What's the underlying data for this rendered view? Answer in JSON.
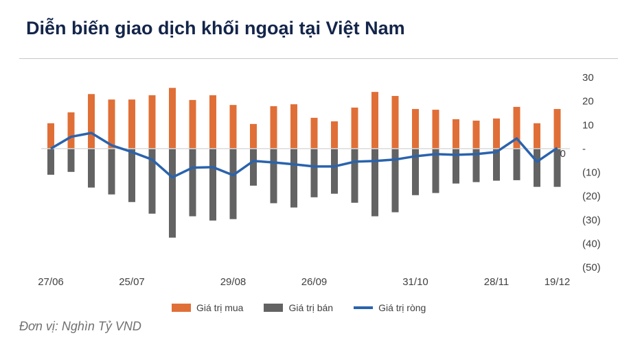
{
  "header": {
    "title": "Diễn biến giao dịch khối ngoại tại Việt Nam"
  },
  "footer": {
    "unit": "Đơn vị: Nghìn Tỷ VND"
  },
  "chart_data": {
    "type": "bar",
    "title": "Diễn biến giao dịch khối ngoại tại Việt Nam",
    "categories": [
      "27/06",
      "",
      "",
      "",
      "25/07",
      "",
      "",
      "",
      "",
      "29/08",
      "",
      "",
      "",
      "26/09",
      "",
      "",
      "",
      "",
      "31/10",
      "",
      "",
      "",
      "28/11",
      "",
      "",
      "19/12"
    ],
    "series": [
      {
        "name": "Giá trị mua",
        "type": "bar",
        "color": "#e06f37",
        "values": [
          10.7,
          15.3,
          23,
          20.7,
          20.7,
          22.5,
          25.6,
          20.5,
          22.5,
          18.4,
          10.4,
          17.9,
          18.7,
          13,
          11.5,
          17.3,
          23.9,
          22.2,
          16.7,
          16.4,
          12.4,
          11.8,
          12.7,
          17.6,
          10.7,
          16.7
        ]
      },
      {
        "name": "Giá trị bán",
        "type": "bar",
        "color": "#636363",
        "values": [
          -11,
          -9.8,
          -16.4,
          -19.3,
          -22.5,
          -27.4,
          -37.5,
          -28.5,
          -30.3,
          -29.7,
          -15.6,
          -23,
          -24.8,
          -20.5,
          -19,
          -22.8,
          -28.5,
          -26.8,
          -19.6,
          -18.7,
          -14.7,
          -14.1,
          -13.5,
          -13.3,
          -16.1,
          -16.1
        ]
      },
      {
        "name": "Giá trị ròng",
        "type": "line",
        "color": "#2a63ad",
        "values": [
          0,
          5,
          6.6,
          1.4,
          -1.4,
          -4.6,
          -12.1,
          -8,
          -7.8,
          -11.2,
          -5.2,
          -5.8,
          -6.6,
          -7.5,
          -7.5,
          -5.5,
          -5.2,
          -4.6,
          -3.2,
          -2.3,
          -2.6,
          -2.3,
          -1.4,
          4.3,
          -5.5,
          0.3
        ]
      }
    ],
    "ylim": [
      -50,
      30
    ],
    "yticks": [
      30,
      20,
      10,
      0,
      -10,
      -20,
      -30,
      -40,
      -50
    ],
    "ytick_labels": [
      "30",
      "20",
      "10",
      "-",
      "(10)",
      "(20)",
      "(30)",
      "(40)",
      "(50)"
    ],
    "data_labels": [
      {
        "index": 25,
        "series": "Giá trị ròng",
        "text": "0"
      }
    ],
    "grid": false,
    "legend": "bottom",
    "zero_line_color": "#d9d9d9"
  }
}
